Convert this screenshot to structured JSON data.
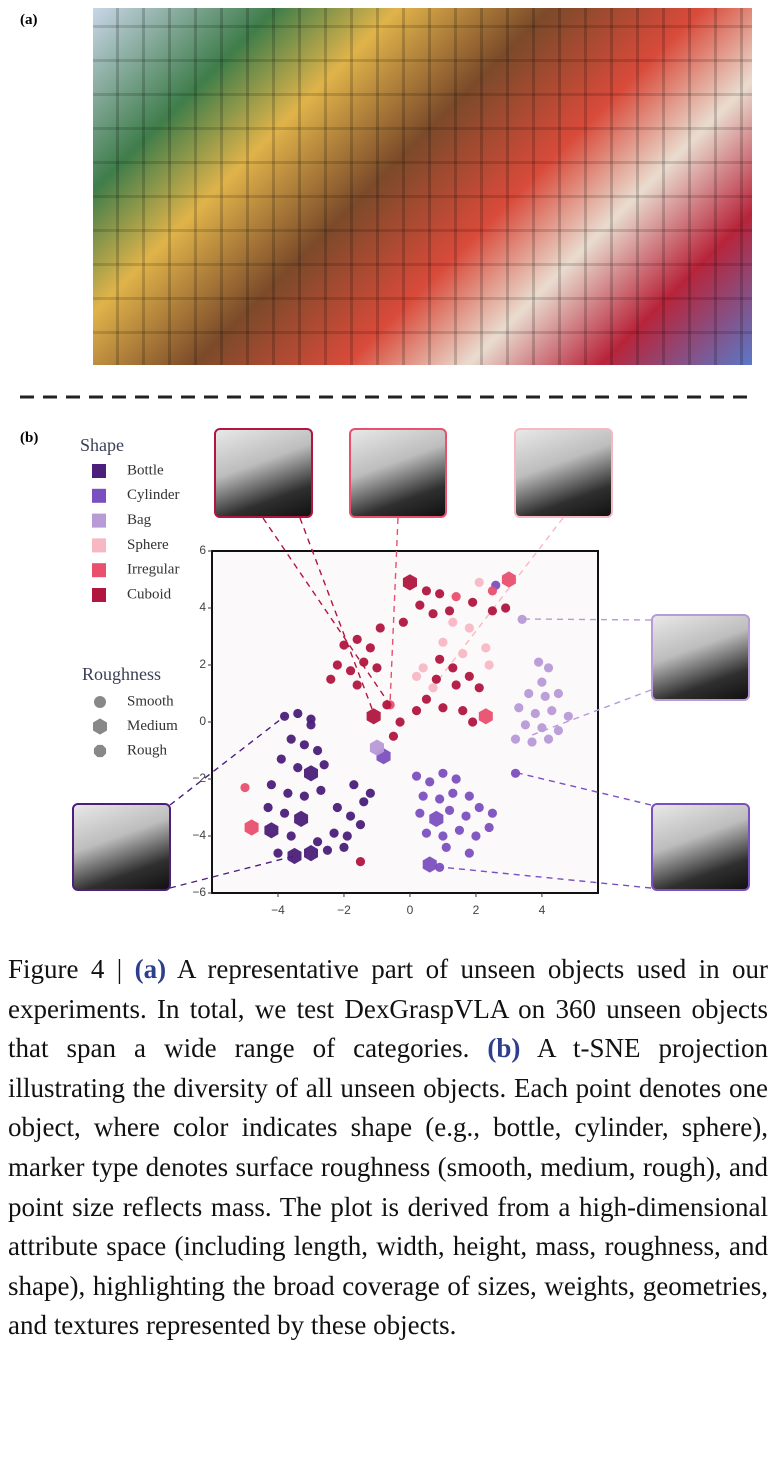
{
  "panels": {
    "a": "(a)",
    "b": "(b)"
  },
  "chart_data": {
    "type": "scatter",
    "xlim": [
      -6,
      5.7
    ],
    "ylim": [
      -6,
      6
    ],
    "xticks": [
      {
        "value": -4,
        "label": "−4"
      },
      {
        "value": -2,
        "label": "−2"
      },
      0,
      2,
      4
    ],
    "yticks": [
      {
        "value": -6,
        "label": "−6"
      },
      {
        "value": -4,
        "label": "−4"
      },
      {
        "value": -2,
        "label": "−2"
      },
      0,
      2,
      4,
      6
    ],
    "legend": {
      "shape_title": "Shape",
      "roughness_title": "Roughness",
      "roughness": [
        {
          "name": "Smooth",
          "marker": "circle"
        },
        {
          "name": "Medium",
          "marker": "hexagon"
        },
        {
          "name": "Rough",
          "marker": "octagon"
        }
      ]
    },
    "series": [
      {
        "name": "Bottle",
        "color": "#4b1f7a",
        "x": [
          -3.8,
          -3.4,
          -3.0,
          -3.6,
          -3.2,
          -2.8,
          -3.9,
          -3.4,
          -2.6,
          -4.2,
          -3.7,
          -3.2,
          -2.7,
          -4.3,
          -3.8,
          -2.2,
          -1.8,
          -1.4,
          -3.6,
          -2.8,
          -2.3,
          -1.9,
          -1.5,
          -2.5,
          -2.0,
          -4.0,
          -1.7,
          -1.2,
          -3.0,
          -3.0,
          -3.3,
          -4.2,
          -3.0,
          -3.5
        ],
        "values": [
          0.2,
          0.3,
          -0.1,
          -0.6,
          -0.8,
          -1.0,
          -1.3,
          -1.6,
          -1.5,
          -2.2,
          -2.5,
          -2.6,
          -2.4,
          -3.0,
          -3.2,
          -3.0,
          -3.3,
          -2.8,
          -4.0,
          -4.2,
          -3.9,
          -4.0,
          -3.6,
          -4.5,
          -4.4,
          -4.6,
          -2.2,
          -2.5,
          0.1,
          -1.8,
          -3.4,
          -3.8,
          -4.6,
          -4.7
        ],
        "roughness": [
          "Smooth",
          "Smooth",
          "Smooth",
          "Smooth",
          "Smooth",
          "Smooth",
          "Smooth",
          "Smooth",
          "Smooth",
          "Smooth",
          "Smooth",
          "Smooth",
          "Smooth",
          "Smooth",
          "Smooth",
          "Smooth",
          "Smooth",
          "Smooth",
          "Smooth",
          "Smooth",
          "Smooth",
          "Smooth",
          "Smooth",
          "Smooth",
          "Smooth",
          "Smooth",
          "Smooth",
          "Smooth",
          "Smooth",
          "Medium",
          "Medium",
          "Medium",
          "Medium",
          "Medium"
        ]
      },
      {
        "name": "Cylinder",
        "color": "#7b4fc0",
        "x": [
          0.2,
          0.6,
          1.0,
          1.4,
          0.4,
          0.9,
          1.3,
          1.8,
          0.3,
          1.2,
          1.7,
          2.1,
          2.5,
          0.5,
          1.0,
          1.5,
          2.0,
          2.4,
          1.1,
          1.8,
          0.9,
          3.2,
          2.6,
          0.6,
          0.8,
          -0.8
        ],
        "values": [
          -1.9,
          -2.1,
          -1.8,
          -2.0,
          -2.6,
          -2.7,
          -2.5,
          -2.6,
          -3.2,
          -3.1,
          -3.3,
          -3.0,
          -3.2,
          -3.9,
          -4.0,
          -3.8,
          -4.0,
          -3.7,
          -4.4,
          -4.6,
          -5.1,
          -1.8,
          4.8,
          -5.0,
          -3.4,
          -1.2
        ],
        "roughness": [
          "Smooth",
          "Smooth",
          "Smooth",
          "Smooth",
          "Smooth",
          "Smooth",
          "Smooth",
          "Smooth",
          "Smooth",
          "Smooth",
          "Smooth",
          "Smooth",
          "Smooth",
          "Smooth",
          "Smooth",
          "Smooth",
          "Smooth",
          "Smooth",
          "Smooth",
          "Smooth",
          "Smooth",
          "Smooth",
          "Smooth",
          "Medium",
          "Medium",
          "Medium"
        ]
      },
      {
        "name": "Bag",
        "color": "#b89ad6",
        "x": [
          3.4,
          3.9,
          4.2,
          4.0,
          3.6,
          4.1,
          4.5,
          3.3,
          3.8,
          4.3,
          4.8,
          3.5,
          4.0,
          4.5,
          3.2,
          3.7,
          4.2,
          -1.0
        ],
        "values": [
          3.6,
          2.1,
          1.9,
          1.4,
          1.0,
          0.9,
          1.0,
          0.5,
          0.3,
          0.4,
          0.2,
          -0.1,
          -0.2,
          -0.3,
          -0.6,
          -0.7,
          -0.6,
          -0.9
        ],
        "roughness": [
          "Smooth",
          "Smooth",
          "Smooth",
          "Smooth",
          "Smooth",
          "Smooth",
          "Smooth",
          "Smooth",
          "Smooth",
          "Smooth",
          "Smooth",
          "Smooth",
          "Smooth",
          "Smooth",
          "Smooth",
          "Smooth",
          "Smooth",
          "Medium"
        ]
      },
      {
        "name": "Sphere",
        "color": "#f7b8c4",
        "x": [
          1.3,
          1.8,
          1.0,
          1.6,
          2.3,
          0.2,
          0.7,
          0.4,
          2.4,
          2.1
        ],
        "values": [
          3.5,
          3.3,
          2.8,
          2.4,
          2.6,
          1.6,
          1.2,
          1.9,
          2.0,
          4.9
        ],
        "roughness": [
          "Smooth",
          "Smooth",
          "Smooth",
          "Smooth",
          "Smooth",
          "Smooth",
          "Smooth",
          "Smooth",
          "Smooth",
          "Smooth"
        ]
      },
      {
        "name": "Irregular",
        "color": "#e8506e",
        "x": [
          2.5,
          -5.0,
          1.4,
          -0.6,
          3.0,
          -4.8,
          2.3
        ],
        "values": [
          4.6,
          -2.3,
          4.4,
          0.6,
          5.0,
          -3.7,
          0.2
        ],
        "roughness": [
          "Smooth",
          "Smooth",
          "Smooth",
          "Smooth",
          "Medium",
          "Medium",
          "Medium"
        ]
      },
      {
        "name": "Cuboid",
        "color": "#b0163f",
        "x": [
          -2.0,
          -1.6,
          -1.2,
          -2.2,
          -1.8,
          -1.4,
          -1.0,
          -1.6,
          -2.4,
          -0.9,
          0.5,
          0.3,
          0.9,
          -0.2,
          0.7,
          1.2,
          1.9,
          2.5,
          2.9,
          0.9,
          1.3,
          1.8,
          0.8,
          1.4,
          2.1,
          0.5,
          1.0,
          1.6,
          0.2,
          -0.3,
          -0.5,
          -1.5,
          1.9,
          -0.7,
          -1.1,
          0.0
        ],
        "values": [
          2.7,
          2.9,
          2.6,
          2.0,
          1.8,
          2.1,
          1.9,
          1.3,
          1.5,
          3.3,
          4.6,
          4.1,
          4.5,
          3.5,
          3.8,
          3.9,
          4.2,
          3.9,
          4.0,
          2.2,
          1.9,
          1.6,
          1.5,
          1.3,
          1.2,
          0.8,
          0.5,
          0.4,
          0.4,
          0.0,
          -0.5,
          -4.9,
          0.0,
          0.6,
          0.2,
          4.9
        ],
        "roughness": [
          "Smooth",
          "Smooth",
          "Smooth",
          "Smooth",
          "Smooth",
          "Smooth",
          "Smooth",
          "Smooth",
          "Smooth",
          "Smooth",
          "Smooth",
          "Smooth",
          "Smooth",
          "Smooth",
          "Smooth",
          "Smooth",
          "Smooth",
          "Smooth",
          "Smooth",
          "Smooth",
          "Smooth",
          "Smooth",
          "Smooth",
          "Smooth",
          "Smooth",
          "Smooth",
          "Smooth",
          "Smooth",
          "Smooth",
          "Smooth",
          "Smooth",
          "Smooth",
          "Smooth",
          "Smooth",
          "Medium",
          "Medium"
        ]
      }
    ]
  },
  "caption": {
    "parts": [
      "Figure 4 | ",
      "(a)",
      " A representative part of unseen objects used in our experiments. In total, we test DexGraspVLA on 360 unseen objects that span a wide range of categories. ",
      "(b)",
      " A t-SNE projection illustrating the diversity of all unseen objects.  Each point denotes one object, where color indicates shape (e.g., bottle, cylinder, sphere), marker type denotes surface roughness (smooth, medium, rough), and point size reflects mass.  The plot is derived from a high-dimensional attribute space (including length, width, height, mass, roughness, and shape), highlighting the broad coverage of sizes, weights, geometries, and textures represented by these objects."
    ]
  }
}
